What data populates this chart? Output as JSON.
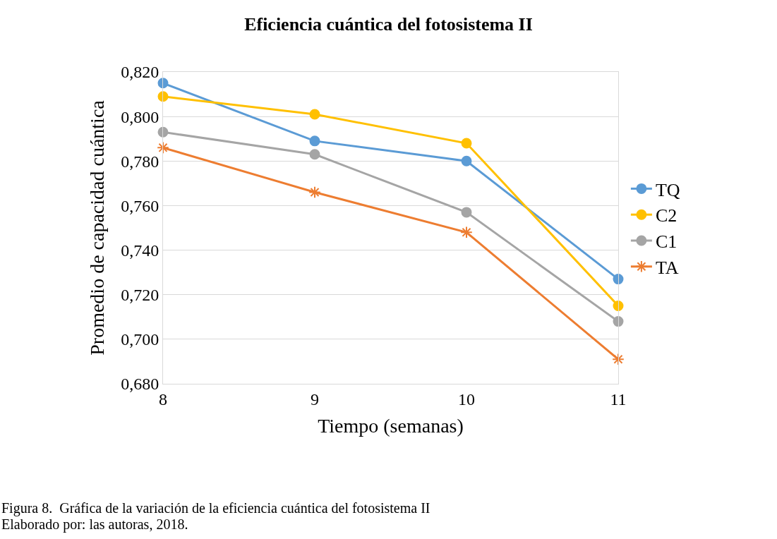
{
  "chart_data": {
    "type": "line",
    "title": "Eficiencia cuántica del fotosistema II",
    "xlabel": "Tiempo (semanas)",
    "ylabel": "Promedio de capacidad cuántica",
    "x": [
      8,
      9,
      10,
      11
    ],
    "series": [
      {
        "name": "TQ",
        "color": "#5b9bd5",
        "marker": "circle",
        "values": [
          0.815,
          0.789,
          0.78,
          0.727
        ]
      },
      {
        "name": "C2",
        "color": "#ffc000",
        "marker": "circle",
        "values": [
          0.809,
          0.801,
          0.788,
          0.715
        ]
      },
      {
        "name": "C1",
        "color": "#a5a5a5",
        "marker": "circle",
        "values": [
          0.793,
          0.783,
          0.757,
          0.708
        ]
      },
      {
        "name": "TA",
        "color": "#ed7d31",
        "marker": "cross",
        "values": [
          0.786,
          0.766,
          0.748,
          0.691
        ]
      }
    ],
    "xlim": [
      8,
      11
    ],
    "xticks": [
      8,
      9,
      10,
      11
    ],
    "ylim": [
      0.68,
      0.82
    ],
    "yticks": [
      {
        "value": 0.68,
        "label": "0,680"
      },
      {
        "value": 0.7,
        "label": "0,700"
      },
      {
        "value": 0.72,
        "label": "0,720"
      },
      {
        "value": 0.74,
        "label": "0,740"
      },
      {
        "value": 0.76,
        "label": "0,760"
      },
      {
        "value": 0.78,
        "label": "0,780"
      },
      {
        "value": 0.8,
        "label": "0,800"
      },
      {
        "value": 0.82,
        "label": "0,820"
      }
    ],
    "grid": "y",
    "legend": "right",
    "line_style": "solid",
    "annotations": [
      "Figura 8.  Gráfica de la variación de la eficiencia cuántica del fotosistema II",
      "Elaborado por: las autoras, 2018."
    ]
  }
}
